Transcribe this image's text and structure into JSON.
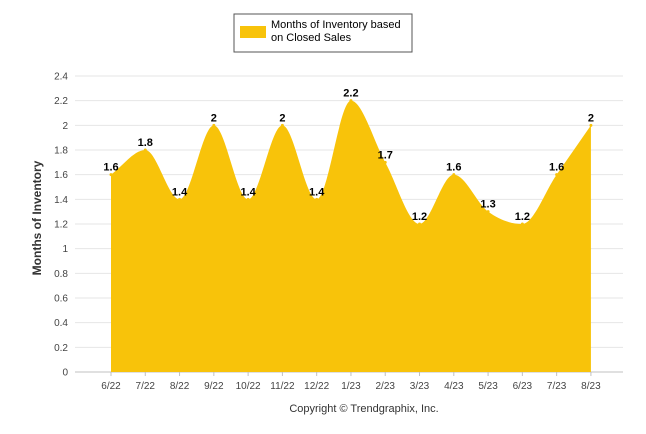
{
  "chart_data": {
    "type": "area",
    "title": "",
    "xlabel": "",
    "ylabel": "Months of Inventory",
    "ylim": [
      0,
      2.4
    ],
    "yticks": [
      "0",
      "0.2",
      "0.4",
      "0.6",
      "0.8",
      "1",
      "1.2",
      "1.4",
      "1.6",
      "1.8",
      "2",
      "2.2",
      "2.4"
    ],
    "categories": [
      "6/22",
      "7/22",
      "8/22",
      "9/22",
      "10/22",
      "11/22",
      "12/22",
      "1/23",
      "2/23",
      "3/23",
      "4/23",
      "5/23",
      "6/23",
      "7/23",
      "8/23"
    ],
    "series": [
      {
        "name": "Months of Inventory based on Closed Sales",
        "values": [
          1.6,
          1.8,
          1.4,
          2,
          1.4,
          2,
          1.4,
          2.2,
          1.7,
          1.2,
          1.6,
          1.3,
          1.2,
          1.6,
          2
        ],
        "labels": [
          "1.6",
          "1.8",
          "1.4",
          "2",
          "1.4",
          "2",
          "1.4",
          "2.2",
          "1.7",
          "1.2",
          "1.6",
          "1.3",
          "1.2",
          "1.6",
          "2"
        ]
      }
    ],
    "legend": {
      "placement": "top-center",
      "line1": "Months of Inventory based",
      "line2": "on Closed Sales"
    },
    "grid": true,
    "colors": {
      "fill": "#F8C30A",
      "grid": "#E6E6E6"
    }
  },
  "footer": {
    "copyright": "Copyright © Trendgraphix, Inc."
  }
}
